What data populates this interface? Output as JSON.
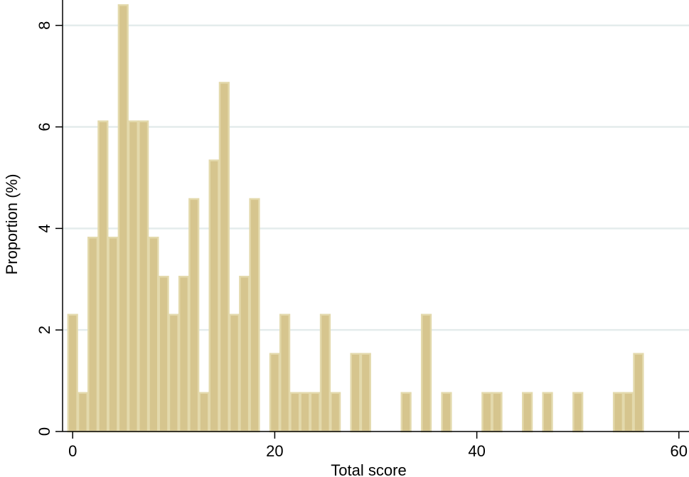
{
  "chart_data": {
    "type": "bar",
    "subtype": "histogram",
    "title": "",
    "xlabel": "Total score",
    "ylabel": "Proportion (%)",
    "xlim": [
      -1,
      61
    ],
    "ylim": [
      0,
      8.5
    ],
    "xticks": [
      0,
      20,
      40,
      60
    ],
    "yticks": [
      0,
      2,
      4,
      6,
      8
    ],
    "grid": "horizontal",
    "bar_width": 1,
    "bar_fill": "#d6c58e",
    "bar_edge": "#e3d9ac",
    "grid_color": "#e4ecec",
    "bins": [
      {
        "x": 0,
        "value": 2.3
      },
      {
        "x": 1,
        "value": 0.76
      },
      {
        "x": 2,
        "value": 3.82
      },
      {
        "x": 3,
        "value": 6.11
      },
      {
        "x": 4,
        "value": 3.82
      },
      {
        "x": 5,
        "value": 8.4
      },
      {
        "x": 6,
        "value": 6.11
      },
      {
        "x": 7,
        "value": 6.11
      },
      {
        "x": 8,
        "value": 3.82
      },
      {
        "x": 9,
        "value": 3.05
      },
      {
        "x": 10,
        "value": 2.3
      },
      {
        "x": 11,
        "value": 3.05
      },
      {
        "x": 12,
        "value": 4.58
      },
      {
        "x": 13,
        "value": 0.76
      },
      {
        "x": 14,
        "value": 5.34
      },
      {
        "x": 15,
        "value": 6.87
      },
      {
        "x": 16,
        "value": 2.3
      },
      {
        "x": 17,
        "value": 3.05
      },
      {
        "x": 18,
        "value": 4.58
      },
      {
        "x": 20,
        "value": 1.53
      },
      {
        "x": 21,
        "value": 2.3
      },
      {
        "x": 22,
        "value": 0.76
      },
      {
        "x": 23,
        "value": 0.76
      },
      {
        "x": 24,
        "value": 0.76
      },
      {
        "x": 25,
        "value": 2.3
      },
      {
        "x": 26,
        "value": 0.76
      },
      {
        "x": 28,
        "value": 1.53
      },
      {
        "x": 29,
        "value": 1.53
      },
      {
        "x": 33,
        "value": 0.76
      },
      {
        "x": 35,
        "value": 2.3
      },
      {
        "x": 37,
        "value": 0.76
      },
      {
        "x": 41,
        "value": 0.76
      },
      {
        "x": 42,
        "value": 0.76
      },
      {
        "x": 45,
        "value": 0.76
      },
      {
        "x": 47,
        "value": 0.76
      },
      {
        "x": 50,
        "value": 0.76
      },
      {
        "x": 54,
        "value": 0.76
      },
      {
        "x": 55,
        "value": 0.76
      },
      {
        "x": 56,
        "value": 1.53
      }
    ]
  }
}
